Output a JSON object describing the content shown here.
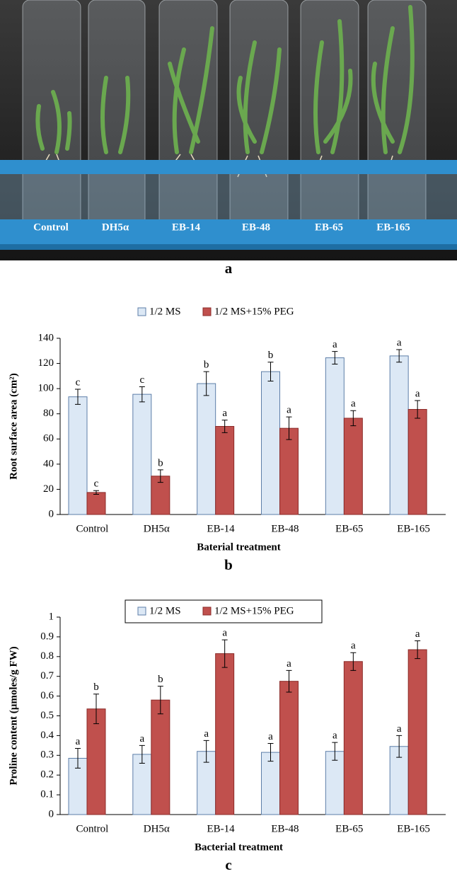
{
  "photo": {
    "labels": [
      "Control",
      "DH5α",
      "EB-14",
      "EB-48",
      "EB-65",
      "EB-165"
    ],
    "panel": "a"
  },
  "chart_data": [
    {
      "type": "bar",
      "panel": "b",
      "y_label": "Root surface area (cm²)",
      "x_label": "Baterial treatment",
      "categories": [
        "Control",
        "DH5α",
        "EB-14",
        "EB-48",
        "EB-65",
        "EB-165"
      ],
      "series": [
        {
          "name": "1/2 MS",
          "color": "#dce8f5",
          "values": [
            93.5,
            95.5,
            104,
            113.5,
            124.5,
            126
          ],
          "errors": [
            6,
            6,
            9.5,
            7.5,
            5,
            5
          ],
          "letters": [
            "c",
            "c",
            "b",
            "b",
            "a",
            "a"
          ]
        },
        {
          "name": "1/2 MS+15% PEG",
          "color": "#c0504d",
          "values": [
            17.5,
            30.5,
            70,
            68.5,
            76.5,
            83.5
          ],
          "errors": [
            1.5,
            5,
            5,
            9,
            6,
            7
          ],
          "letters": [
            "c",
            "b",
            "a",
            "a",
            "a",
            "a"
          ]
        }
      ],
      "ylim": [
        0,
        140
      ],
      "yticks": [
        0,
        20,
        40,
        60,
        80,
        100,
        120,
        140
      ],
      "legend_frame": false
    },
    {
      "type": "bar",
      "panel": "c",
      "y_label": "Proline content (µmoles/g FW)",
      "x_label": "Bacterial treatment",
      "categories": [
        "Control",
        "DH5α",
        "EB-14",
        "EB-48",
        "EB-65",
        "EB-165"
      ],
      "series": [
        {
          "name": "1/2 MS",
          "color": "#dce8f5",
          "values": [
            0.285,
            0.305,
            0.32,
            0.315,
            0.32,
            0.345
          ],
          "errors": [
            0.05,
            0.045,
            0.055,
            0.045,
            0.045,
            0.055
          ],
          "letters": [
            "a",
            "a",
            "a",
            "a",
            "a",
            "a"
          ]
        },
        {
          "name": "1/2 MS+15% PEG",
          "color": "#c0504d",
          "values": [
            0.535,
            0.58,
            0.815,
            0.675,
            0.775,
            0.835
          ],
          "errors": [
            0.075,
            0.07,
            0.07,
            0.055,
            0.045,
            0.045
          ],
          "letters": [
            "b",
            "b",
            "a",
            "a",
            "a",
            "a"
          ]
        }
      ],
      "ylim": [
        0,
        1
      ],
      "yticks": [
        0,
        0.1,
        0.2,
        0.3,
        0.4,
        0.5,
        0.6,
        0.7,
        0.8,
        0.9,
        1
      ],
      "legend_frame": true
    }
  ]
}
